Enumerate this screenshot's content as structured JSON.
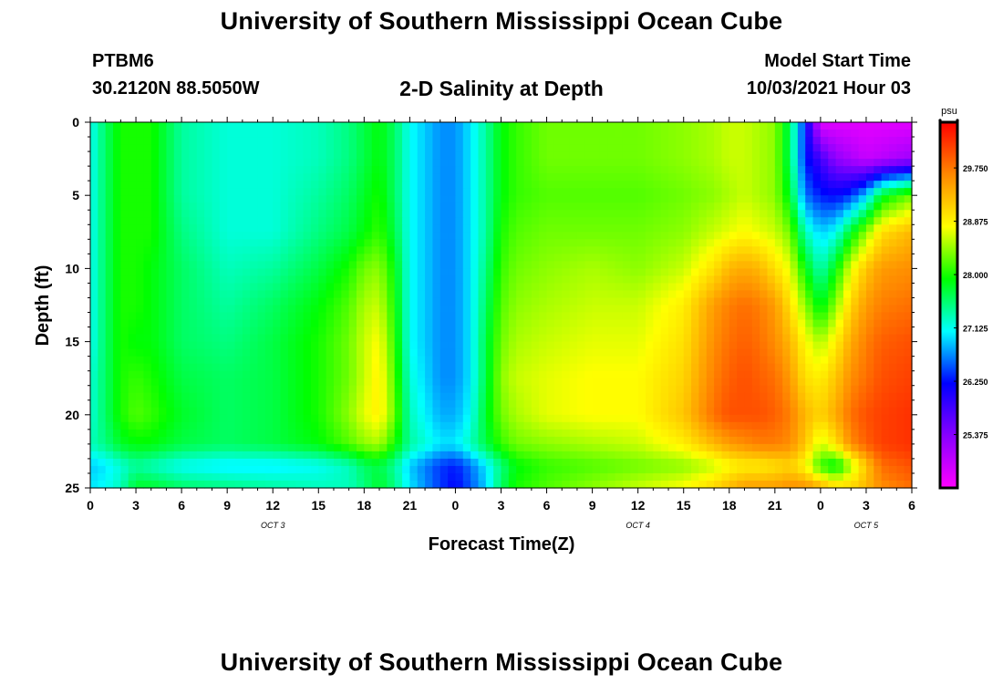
{
  "header": {
    "title_top": "University of Southern Mississippi Ocean Cube",
    "station_id": "PTBM6",
    "station_coords": "30.2120N  88.5050W",
    "plot_subtitle": "2-D Salinity at Depth",
    "model_start_label": "Model Start Time",
    "model_start_value": "10/03/2021 Hour 03"
  },
  "footer": {
    "title_bottom": "University of Southern Mississippi Ocean Cube"
  },
  "chart_data": {
    "type": "heatmap",
    "title": "2-D Salinity at Depth",
    "xlabel": "Forecast Time(Z)",
    "ylabel": "Depth (ft)",
    "x_range_hours": [
      0,
      54
    ],
    "y_range_ft": [
      0,
      25
    ],
    "x_ticks": [
      {
        "hour": 0,
        "label": "0"
      },
      {
        "hour": 3,
        "label": "3"
      },
      {
        "hour": 6,
        "label": "6"
      },
      {
        "hour": 9,
        "label": "9"
      },
      {
        "hour": 12,
        "label": "12"
      },
      {
        "hour": 15,
        "label": "15"
      },
      {
        "hour": 18,
        "label": "18"
      },
      {
        "hour": 21,
        "label": "21"
      },
      {
        "hour": 24,
        "label": "0"
      },
      {
        "hour": 27,
        "label": "3"
      },
      {
        "hour": 30,
        "label": "6"
      },
      {
        "hour": 33,
        "label": "9"
      },
      {
        "hour": 36,
        "label": "12"
      },
      {
        "hour": 39,
        "label": "15"
      },
      {
        "hour": 42,
        "label": "18"
      },
      {
        "hour": 45,
        "label": "21"
      },
      {
        "hour": 48,
        "label": "0"
      },
      {
        "hour": 51,
        "label": "3"
      },
      {
        "hour": 54,
        "label": "6"
      }
    ],
    "day_labels": [
      {
        "hour": 12,
        "label": "OCT 3"
      },
      {
        "hour": 36,
        "label": "OCT 4"
      },
      {
        "hour": 51,
        "label": "OCT 5"
      }
    ],
    "y_ticks": [
      0,
      5,
      10,
      15,
      20,
      25
    ],
    "colorbar": {
      "unit": "psu",
      "range": [
        24.5,
        30.5
      ],
      "tick_values": [
        25.375,
        26.25,
        27.125,
        28.0,
        28.875,
        29.75
      ],
      "tick_labels": [
        "25.375",
        "26.250",
        "27.125",
        "28.000",
        "28.875",
        "29.750"
      ],
      "colors": [
        "#ff00ff",
        "#8800ff",
        "#0000ff",
        "#00ffff",
        "#00ff00",
        "#ffff00",
        "#ff8800",
        "#ff0000"
      ]
    },
    "depths_ft": [
      0,
      2.5,
      5,
      7.5,
      10,
      12.5,
      15,
      17.5,
      20,
      22,
      23.5,
      25
    ],
    "times_h": [
      0,
      1,
      2,
      3,
      4,
      6,
      9,
      12,
      15,
      17,
      18,
      19,
      20,
      21,
      23,
      24,
      25,
      26,
      27,
      28,
      30,
      33,
      36,
      39,
      41,
      42,
      43,
      44,
      45,
      46,
      47,
      48,
      49,
      50,
      51,
      52,
      54
    ],
    "salinity_psu": [
      [
        27.1,
        27.6,
        28.0,
        28.0,
        28.0,
        27.4,
        27.2,
        27.2,
        27.3,
        27.5,
        27.7,
        27.9,
        27.6,
        27.1,
        26.7,
        26.7,
        27.0,
        27.4,
        27.9,
        28.1,
        28.3,
        28.3,
        28.3,
        28.4,
        28.5,
        28.6,
        28.6,
        28.5,
        28.4,
        27.6,
        26.3,
        24.7,
        24.7,
        24.7,
        24.7,
        24.7,
        24.7
      ],
      [
        27.1,
        27.6,
        28.0,
        28.0,
        28.0,
        27.4,
        27.2,
        27.2,
        27.3,
        27.5,
        27.7,
        27.9,
        27.6,
        27.1,
        26.7,
        26.7,
        27.0,
        27.4,
        27.9,
        28.1,
        28.3,
        28.3,
        28.3,
        28.4,
        28.5,
        28.6,
        28.6,
        28.5,
        28.4,
        27.6,
        26.3,
        25.8,
        25.3,
        25.1,
        24.9,
        25.0,
        25.2
      ],
      [
        27.1,
        27.6,
        28.0,
        28.0,
        28.0,
        27.4,
        27.2,
        27.2,
        27.4,
        27.6,
        27.8,
        28.0,
        27.6,
        27.1,
        26.7,
        26.7,
        27.0,
        27.4,
        27.9,
        28.1,
        28.2,
        28.2,
        28.2,
        28.3,
        28.4,
        28.5,
        28.6,
        28.5,
        28.4,
        27.8,
        26.6,
        26.3,
        26.2,
        26.4,
        26.9,
        27.8,
        28.3
      ],
      [
        27.1,
        27.6,
        28.0,
        28.0,
        28.0,
        27.5,
        27.2,
        27.2,
        27.5,
        27.7,
        27.9,
        28.1,
        27.7,
        27.1,
        26.7,
        26.7,
        27.0,
        27.4,
        28.0,
        28.2,
        28.3,
        28.3,
        28.3,
        28.4,
        28.6,
        28.7,
        28.8,
        28.7,
        28.6,
        28.3,
        27.3,
        26.9,
        27.1,
        27.8,
        28.4,
        29.0,
        29.3
      ],
      [
        27.1,
        27.6,
        28.0,
        28.0,
        27.9,
        27.6,
        27.3,
        27.4,
        27.7,
        28.0,
        28.3,
        28.4,
        27.9,
        27.1,
        26.7,
        26.7,
        27.0,
        27.5,
        28.1,
        28.3,
        28.4,
        28.5,
        28.4,
        28.6,
        29.0,
        29.3,
        29.4,
        29.3,
        29.0,
        28.7,
        27.9,
        27.3,
        27.9,
        28.7,
        29.2,
        29.5,
        29.6
      ],
      [
        27.1,
        27.6,
        28.0,
        28.0,
        27.9,
        27.6,
        27.4,
        27.6,
        27.9,
        28.2,
        28.5,
        28.6,
        28.0,
        27.1,
        26.7,
        26.7,
        27.0,
        27.6,
        28.2,
        28.4,
        28.5,
        28.6,
        28.6,
        28.9,
        29.5,
        29.7,
        29.8,
        29.7,
        29.5,
        29.0,
        28.4,
        27.8,
        28.4,
        29.1,
        29.5,
        29.7,
        29.8
      ],
      [
        27.1,
        27.6,
        28.0,
        27.9,
        27.9,
        27.6,
        27.5,
        27.7,
        28.0,
        28.3,
        28.6,
        28.8,
        28.1,
        27.1,
        26.7,
        26.7,
        27.0,
        27.7,
        28.3,
        28.5,
        28.6,
        28.7,
        28.7,
        29.0,
        29.6,
        29.8,
        29.9,
        29.8,
        29.6,
        29.3,
        28.8,
        28.5,
        28.9,
        29.4,
        29.7,
        29.9,
        30.0
      ],
      [
        27.2,
        27.6,
        28.0,
        28.1,
        28.0,
        27.7,
        27.6,
        27.7,
        28.0,
        28.3,
        28.6,
        28.9,
        28.2,
        27.2,
        26.7,
        26.7,
        27.0,
        27.7,
        28.4,
        28.6,
        28.7,
        28.8,
        28.8,
        29.1,
        29.7,
        29.9,
        30.0,
        29.9,
        29.8,
        29.5,
        29.0,
        28.9,
        29.2,
        29.6,
        29.8,
        30.0,
        30.1
      ],
      [
        27.2,
        27.6,
        28.0,
        28.2,
        28.1,
        27.8,
        27.6,
        27.7,
        28.0,
        28.4,
        28.7,
        28.9,
        28.3,
        27.3,
        26.8,
        26.8,
        27.1,
        27.8,
        28.3,
        28.5,
        28.7,
        28.8,
        28.8,
        29.2,
        29.8,
        30.0,
        30.0,
        30.0,
        29.9,
        29.7,
        29.3,
        29.1,
        29.4,
        29.8,
        30.0,
        30.1,
        30.2
      ],
      [
        27.3,
        27.5,
        27.8,
        27.9,
        27.9,
        27.7,
        27.6,
        27.7,
        27.9,
        28.2,
        28.4,
        28.5,
        28.0,
        27.4,
        27.0,
        27.0,
        27.3,
        27.7,
        28.1,
        28.3,
        28.4,
        28.5,
        28.6,
        28.9,
        29.3,
        29.5,
        29.6,
        29.7,
        29.7,
        29.6,
        29.2,
        28.6,
        29.0,
        29.6,
        29.9,
        30.1,
        30.2
      ],
      [
        26.9,
        27.0,
        27.2,
        27.4,
        27.3,
        27.1,
        27.0,
        27.0,
        27.1,
        27.3,
        27.6,
        27.7,
        27.4,
        26.9,
        26.4,
        26.3,
        26.6,
        27.0,
        27.5,
        27.9,
        28.1,
        28.2,
        28.3,
        28.4,
        28.6,
        28.8,
        28.9,
        28.9,
        29.0,
        29.1,
        28.8,
        28.1,
        27.8,
        28.5,
        29.2,
        29.8,
        30.0
      ],
      [
        27.0,
        27.1,
        27.3,
        27.8,
        27.8,
        27.6,
        27.5,
        27.4,
        27.3,
        27.3,
        27.5,
        27.8,
        27.5,
        27.0,
        26.4,
        26.2,
        26.5,
        26.9,
        27.6,
        28.0,
        28.2,
        28.4,
        28.6,
        28.8,
        29.1,
        29.3,
        29.5,
        29.5,
        29.5,
        29.6,
        29.6,
        29.4,
        29.1,
        29.1,
        29.3,
        29.6,
        29.8
      ]
    ]
  }
}
